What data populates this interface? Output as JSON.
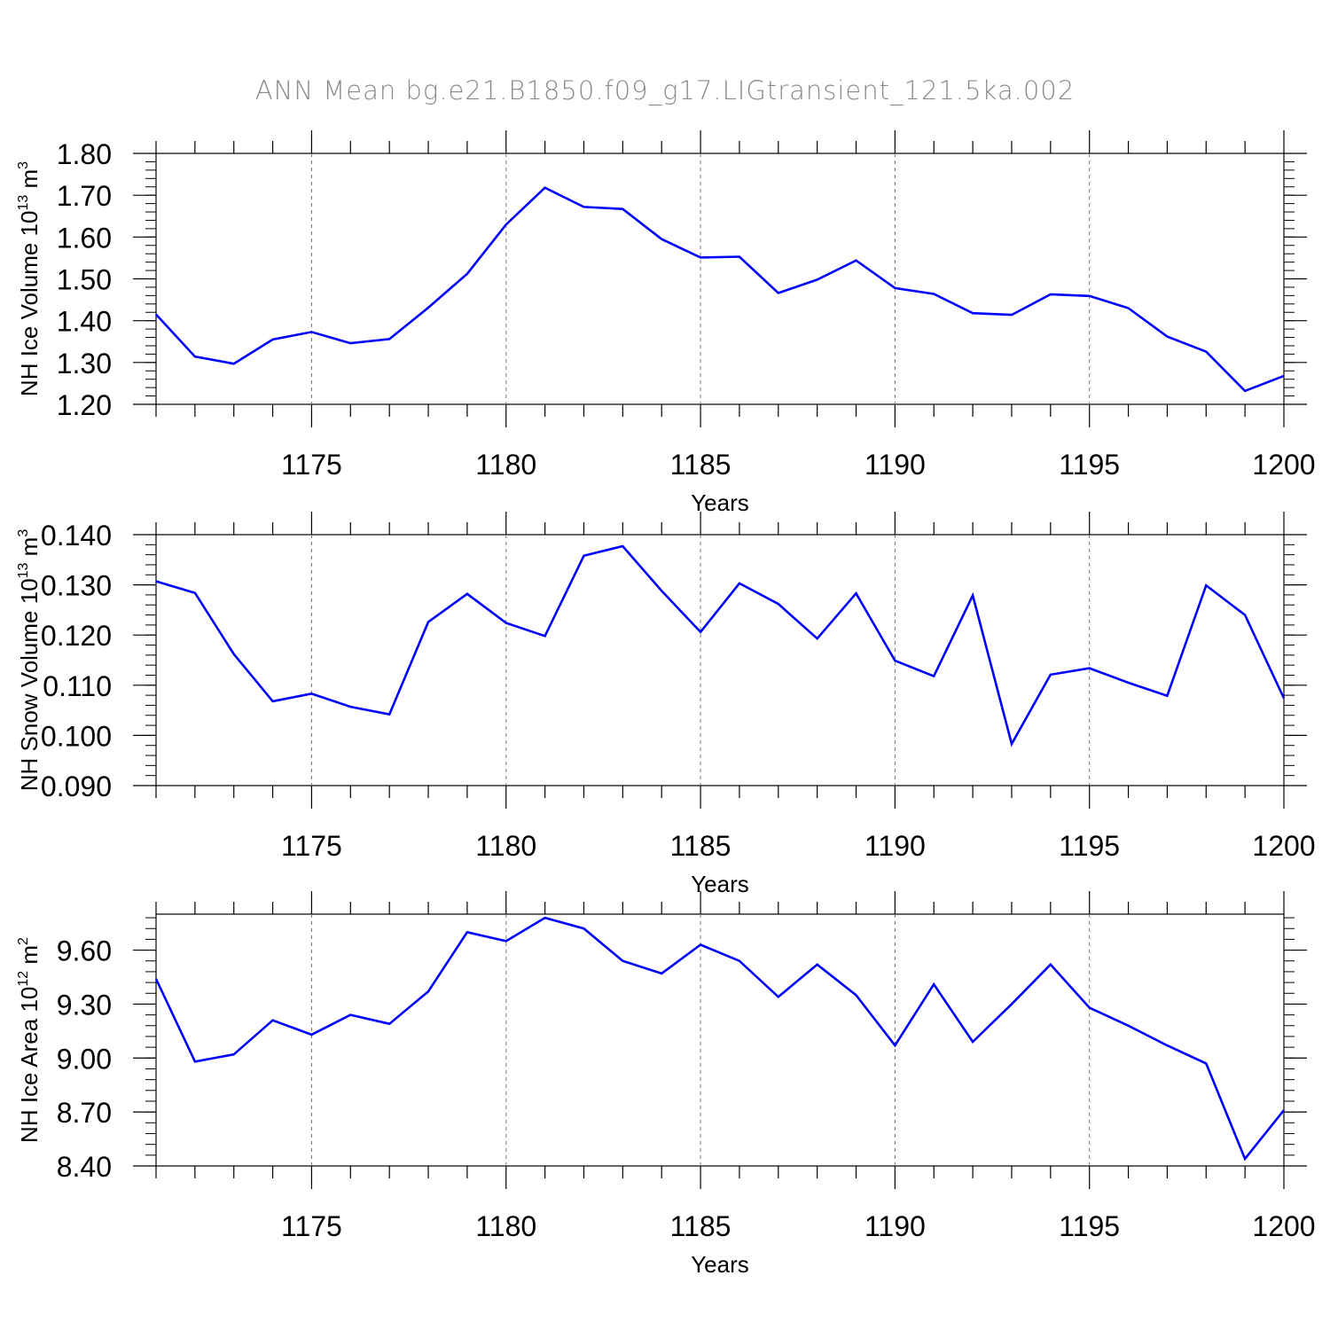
{
  "title": "ANN Mean bg.e21.B1850.f09_g17.LIGtransient_121.5ka.002",
  "line_color": "#0000ff",
  "chart_data": [
    {
      "type": "line",
      "xlabel": "Years",
      "ylabel": "NH Ice Volume 10",
      "ylabel_exp": "13",
      "ylabel_unit": " m",
      "ylabel_unit_exp": "3",
      "xlim": [
        1171,
        1200
      ],
      "ylim": [
        1.2,
        1.8
      ],
      "yticks": [
        "1.20",
        "1.30",
        "1.40",
        "1.50",
        "1.60",
        "1.70",
        "1.80"
      ],
      "yminor": 0.02,
      "xticks": [
        "1175",
        "1180",
        "1185",
        "1190",
        "1195",
        "1200"
      ],
      "series": [
        {
          "x": [
            1171,
            1172,
            1173,
            1174,
            1175,
            1176,
            1177,
            1178,
            1179,
            1180,
            1181,
            1182,
            1183,
            1184,
            1185,
            1186,
            1187,
            1188,
            1189,
            1190,
            1191,
            1192,
            1193,
            1194,
            1195,
            1196,
            1197,
            1198,
            1199,
            1200
          ],
          "values": [
            1.415,
            1.314,
            1.297,
            1.355,
            1.373,
            1.346,
            1.356,
            1.431,
            1.512,
            1.63,
            1.718,
            1.672,
            1.667,
            1.595,
            1.551,
            1.553,
            1.466,
            1.498,
            1.544,
            1.478,
            1.464,
            1.418,
            1.414,
            1.463,
            1.459,
            1.43,
            1.362,
            1.326,
            1.232,
            1.268
          ]
        }
      ]
    },
    {
      "type": "line",
      "xlabel": "Years",
      "ylabel": "NH Snow Volume 10",
      "ylabel_exp": "13",
      "ylabel_unit": " m",
      "ylabel_unit_exp": "3",
      "xlim": [
        1171,
        1200
      ],
      "ylim": [
        0.09,
        0.14
      ],
      "yticks": [
        "0.090",
        "0.100",
        "0.110",
        "0.120",
        "0.130",
        "0.140"
      ],
      "yminor": 0.002,
      "xticks": [
        "1175",
        "1180",
        "1185",
        "1190",
        "1195",
        "1200"
      ],
      "series": [
        {
          "x": [
            1171,
            1172,
            1173,
            1174,
            1175,
            1176,
            1177,
            1178,
            1179,
            1180,
            1181,
            1182,
            1183,
            1184,
            1185,
            1186,
            1187,
            1188,
            1189,
            1190,
            1191,
            1192,
            1193,
            1194,
            1195,
            1196,
            1197,
            1198,
            1199,
            1200
          ],
          "values": [
            0.1307,
            0.1284,
            0.1162,
            0.1068,
            0.1083,
            0.1057,
            0.1042,
            0.1226,
            0.1282,
            0.1224,
            0.1198,
            0.1358,
            0.1377,
            0.1288,
            0.1206,
            0.1303,
            0.1262,
            0.1193,
            0.1283,
            0.1149,
            0.1118,
            0.1279,
            0.0983,
            0.1121,
            0.1134,
            0.1105,
            0.1079,
            0.1299,
            0.124,
            0.1074
          ]
        }
      ]
    },
    {
      "type": "line",
      "xlabel": "Years",
      "ylabel": "NH Ice Area 10",
      "ylabel_exp": "12",
      "ylabel_unit": " m",
      "ylabel_unit_exp": "2",
      "xlim": [
        1171,
        1200
      ],
      "ylim": [
        8.4,
        9.8
      ],
      "yticks": [
        "8.40",
        "8.70",
        "9.00",
        "9.30",
        "9.60"
      ],
      "yminor": 0.06,
      "xticks": [
        "1175",
        "1180",
        "1185",
        "1190",
        "1195",
        "1200"
      ],
      "series": [
        {
          "x": [
            1171,
            1172,
            1173,
            1174,
            1175,
            1176,
            1177,
            1178,
            1179,
            1180,
            1181,
            1182,
            1183,
            1184,
            1185,
            1186,
            1187,
            1188,
            1189,
            1190,
            1191,
            1192,
            1193,
            1194,
            1195,
            1196,
            1197,
            1198,
            1199,
            1200
          ],
          "values": [
            9.44,
            8.98,
            9.02,
            9.21,
            9.13,
            9.24,
            9.19,
            9.37,
            9.7,
            9.65,
            9.78,
            9.72,
            9.54,
            9.47,
            9.63,
            9.54,
            9.34,
            9.52,
            9.35,
            9.07,
            9.41,
            9.09,
            9.3,
            9.52,
            9.28,
            9.18,
            9.07,
            8.97,
            8.44,
            8.71
          ]
        }
      ]
    }
  ]
}
